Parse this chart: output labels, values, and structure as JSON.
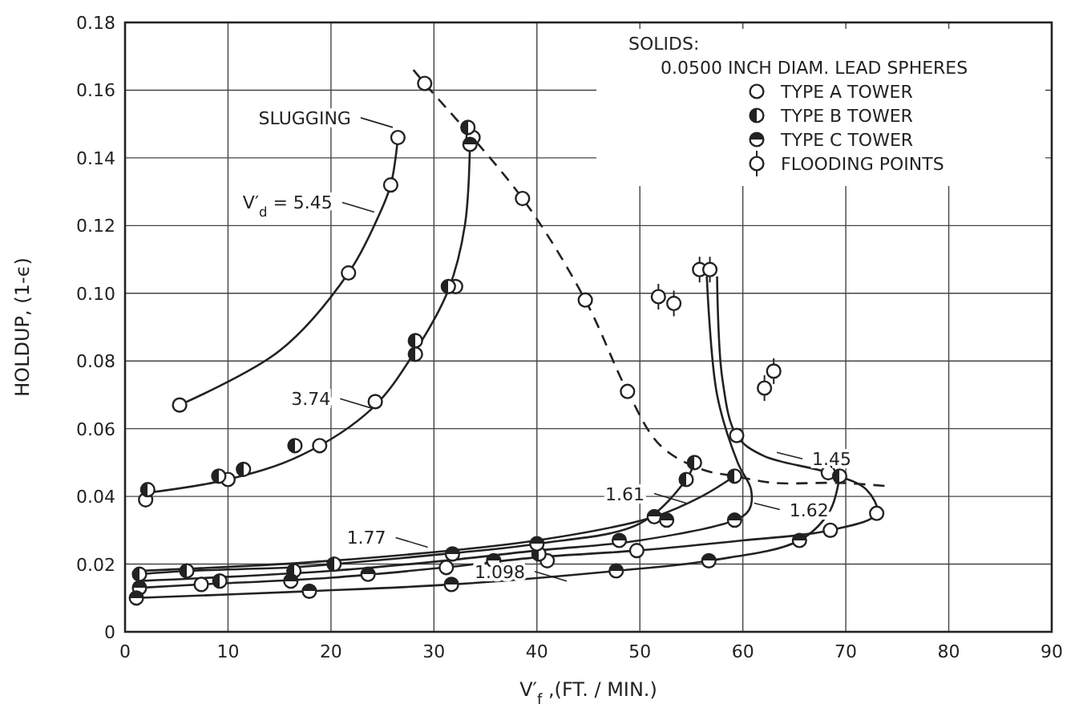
{
  "chart_data": {
    "type": "scatter",
    "xlabel": "V′$_{f}$ ,(FT. / MIN.)",
    "ylabel": "HOLDUP, (1-ϵ)",
    "legend_title": "SOLIDS:",
    "subtitle": "0.0500 INCH DIAM. LEAD SPHERES",
    "xlim": [
      0,
      90
    ],
    "xticks": [
      0,
      10,
      20,
      30,
      40,
      50,
      60,
      70,
      80,
      90
    ],
    "ylim": [
      0,
      0.18
    ],
    "yticks": [
      0,
      {
        "value": 0.02,
        "label": "0.02"
      },
      {
        "value": 0.04,
        "label": "0.04"
      },
      {
        "value": 0.06,
        "label": "0.06"
      },
      {
        "value": 0.08,
        "label": "0.08"
      },
      {
        "value": 0.1,
        "label": "0.10"
      },
      {
        "value": 0.12,
        "label": "0.12"
      },
      {
        "value": 0.14,
        "label": "0.14"
      },
      {
        "value": 0.16,
        "label": "0.16"
      },
      {
        "value": 0.18,
        "label": "0.18"
      }
    ],
    "grid": true,
    "legend": "top right",
    "series": [
      {
        "type": "line",
        "color": "#222222",
        "marker": "none",
        "line_style": "solid",
        "x": [
          5.3,
          15,
          21.7,
          24.5,
          25.8,
          26.5
        ],
        "values": [
          0.067,
          0.083,
          0.106,
          0.122,
          0.132,
          0.146
        ]
      },
      {
        "type": "line",
        "color": "#222222",
        "marker": "none",
        "line_style": "solid",
        "x": [
          2,
          10,
          17,
          24,
          28.2,
          31.4,
          33,
          33.5
        ],
        "values": [
          0.041,
          0.045,
          0.052,
          0.066,
          0.083,
          0.101,
          0.12,
          0.145
        ]
      },
      {
        "type": "line",
        "color": "#222222",
        "marker": "none",
        "line_style": "solid",
        "x": [
          1.4,
          7.4,
          20,
          31,
          40,
          49.7,
          60,
          68.5,
          73,
          72,
          68.3,
          62,
          59.4,
          58,
          57.5
        ],
        "values": [
          0.013,
          0.014,
          0.016,
          0.019,
          0.022,
          0.024,
          0.027,
          0.03,
          0.035,
          0.042,
          0.047,
          0.052,
          0.058,
          0.075,
          0.105
        ]
      },
      {
        "type": "line",
        "color": "#222222",
        "marker": "none",
        "line_style": "solid",
        "x": [
          1.4,
          20,
          31,
          40,
          50,
          59.2,
          60.6,
          60.8,
          59.5,
          57.5,
          56.5
        ],
        "values": [
          0.015,
          0.018,
          0.021,
          0.024,
          0.027,
          0.033,
          0.036,
          0.042,
          0.05,
          0.07,
          0.105
        ]
      },
      {
        "type": "line",
        "color": "#222222",
        "marker": "none",
        "line_style": "solid",
        "x": [
          1.4,
          6,
          16,
          20.3,
          31,
          40,
          50,
          54.5,
          55.3
        ],
        "values": [
          0.017,
          0.018,
          0.019,
          0.02,
          0.023,
          0.026,
          0.032,
          0.045,
          0.05
        ]
      },
      {
        "type": "line",
        "color": "#222222",
        "marker": "none",
        "line_style": "solid",
        "x": [
          1.4,
          20,
          40,
          51.4,
          56,
          59.2
        ],
        "values": [
          0.018,
          0.021,
          0.027,
          0.034,
          0.04,
          0.046
        ]
      },
      {
        "type": "line",
        "color": "#222222",
        "marker": "none",
        "line_style": "solid",
        "x": [
          1.1,
          17.9,
          31.7,
          47.7,
          56.7,
          65.5,
          68.5,
          69.4
        ],
        "values": [
          0.01,
          0.012,
          0.014,
          0.018,
          0.021,
          0.027,
          0.036,
          0.046
        ]
      },
      {
        "type": "line",
        "color": "#222222",
        "marker": "none",
        "line_style": "dashed",
        "x": [
          28,
          29.1,
          38.6,
          44.7,
          48.8,
          52,
          56,
          59.2,
          63,
          69.4,
          74.2
        ],
        "values": [
          0.166,
          0.162,
          0.128,
          0.098,
          0.071,
          0.055,
          0.048,
          0.046,
          0.044,
          0.044,
          0.043
        ]
      },
      {
        "name": "TYPE A TOWER",
        "color": "#222222",
        "marker": "circle",
        "x": [
          29.1,
          26.5,
          25.8,
          21.7,
          5.3,
          33.8,
          32.1,
          38.6,
          44.7,
          48.8,
          2.0,
          10,
          18.9,
          24.3,
          59.4,
          68.3,
          73.0,
          68.5,
          49.7,
          7.4,
          31.2,
          41
        ],
        "values": [
          0.162,
          0.146,
          0.132,
          0.106,
          0.067,
          0.146,
          0.102,
          0.128,
          0.098,
          0.071,
          0.039,
          0.045,
          0.055,
          0.068,
          0.058,
          0.047,
          0.035,
          0.03,
          0.024,
          0.014,
          0.019,
          0.021
        ]
      },
      {
        "name": "TYPE B TOWER",
        "color": "#222222",
        "marker": "circle",
        "x": [
          33.3,
          31.4,
          28.2,
          28.2,
          2.2,
          9.1,
          11.5,
          16.5,
          1.4,
          6.0,
          9.2,
          16.4,
          20.3,
          40.2,
          55.3,
          54.5,
          59.2,
          69.4
        ],
        "values": [
          0.149,
          0.102,
          0.086,
          0.082,
          0.042,
          0.046,
          0.048,
          0.055,
          0.017,
          0.018,
          0.015,
          0.018,
          0.02,
          0.023,
          0.05,
          0.045,
          0.046,
          0.046
        ]
      },
      {
        "name": "TYPE C TOWER",
        "color": "#222222",
        "marker": "circle",
        "x": [
          33.5,
          1.4,
          1.1,
          16.1,
          17.9,
          23.6,
          31.8,
          31.7,
          35.8,
          40,
          51.4,
          52.6,
          59.2,
          65.5,
          56.7,
          47.7,
          48
        ],
        "values": [
          0.144,
          0.013,
          0.01,
          0.015,
          0.012,
          0.017,
          0.023,
          0.014,
          0.021,
          0.026,
          0.034,
          0.033,
          0.033,
          0.027,
          0.021,
          0.018,
          0.027
        ]
      },
      {
        "name": "FLOODING POINTS",
        "color": "#222222",
        "marker": "circle",
        "x": [
          51.8,
          53.3,
          55.8,
          56.8,
          62.1,
          63
        ],
        "values": [
          0.099,
          0.097,
          0.107,
          0.107,
          0.072,
          0.077
        ]
      }
    ],
    "annotations": [
      {
        "text": "SLUGGING",
        "x": 26,
        "y": 0.149
      },
      {
        "text": "V′$_{d}$ = 5.45",
        "x": 24.2,
        "y": 0.124
      },
      {
        "text": "3.74",
        "x": 24,
        "y": 0.066
      },
      {
        "text": "1.77",
        "x": 29.4,
        "y": 0.025
      },
      {
        "text": "1.61",
        "x": 54.5,
        "y": 0.038
      },
      {
        "text": "1.62",
        "x": 61.1,
        "y": 0.038
      },
      {
        "text": "1.45",
        "x": 63.3,
        "y": 0.053
      },
      {
        "text": "1.098",
        "x": 42.9,
        "y": 0.015
      }
    ]
  }
}
